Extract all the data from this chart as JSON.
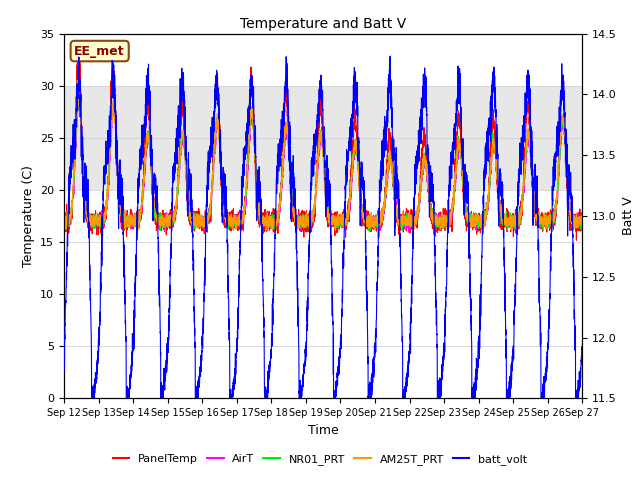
{
  "title": "Temperature and Batt V",
  "xlabel": "Time",
  "ylabel_left": "Temperature (C)",
  "ylabel_right": "Batt V",
  "annotation": "EE_met",
  "ylim_left": [
    0,
    35
  ],
  "ylim_right": [
    11.5,
    14.5
  ],
  "x_ticks": [
    "Sep 12",
    "Sep 13",
    "Sep 14",
    "Sep 15",
    "Sep 16",
    "Sep 17",
    "Sep 18",
    "Sep 19",
    "Sep 20",
    "Sep 21",
    "Sep 22",
    "Sep 23",
    "Sep 24",
    "Sep 25",
    "Sep 26",
    "Sep 27"
  ],
  "shaded_band": [
    20,
    30
  ],
  "legend": [
    {
      "label": "PanelTemp",
      "color": "#ff0000"
    },
    {
      "label": "AirT",
      "color": "#ff00ff"
    },
    {
      "label": "NR01_PRT",
      "color": "#00ee00"
    },
    {
      "label": "AM25T_PRT",
      "color": "#ff9900"
    },
    {
      "label": "batt_volt",
      "color": "#0000ff"
    }
  ],
  "background_color": "#ffffff",
  "annotation_bg": "#ffffcc",
  "annotation_edge": "#8b4513",
  "annotation_color": "#8b0000"
}
